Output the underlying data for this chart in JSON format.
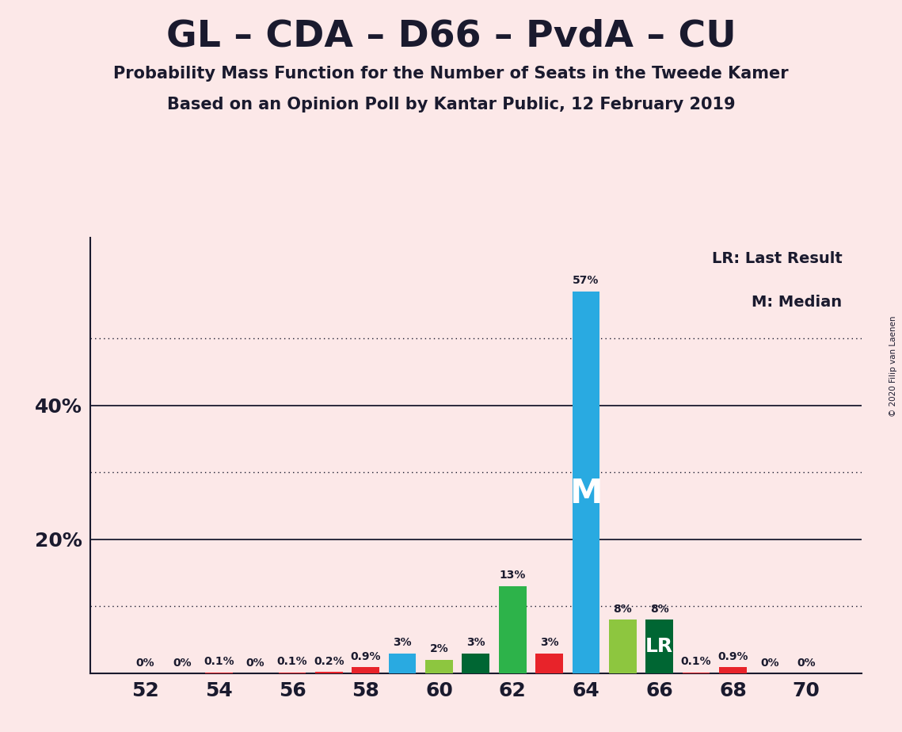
{
  "title": "GL – CDA – D66 – PvdA – CU",
  "subtitle1": "Probability Mass Function for the Number of Seats in the Tweede Kamer",
  "subtitle2": "Based on an Opinion Poll by Kantar Public, 12 February 2019",
  "copyright": "© 2020 Filip van Laenen",
  "bg": "#fce8e8",
  "seats": [
    52,
    53,
    54,
    55,
    56,
    57,
    58,
    59,
    60,
    61,
    62,
    63,
    64,
    65,
    66,
    67,
    68,
    69,
    70
  ],
  "probs": [
    0.0,
    0.0,
    0.001,
    0.0,
    0.001,
    0.002,
    0.009,
    0.03,
    0.02,
    0.03,
    0.13,
    0.03,
    0.57,
    0.08,
    0.08,
    0.001,
    0.009,
    0.0,
    0.0
  ],
  "colors": [
    "#e8232a",
    "#e8232a",
    "#e8232a",
    "#e8232a",
    "#e8232a",
    "#e8232a",
    "#e8232a",
    "#29aae1",
    "#8dc63f",
    "#006633",
    "#2db34a",
    "#e8232a",
    "#29aae1",
    "#8dc63f",
    "#006633",
    "#e8232a",
    "#e8232a",
    "#e8232a",
    "#e8232a"
  ],
  "bar_labels": [
    "0%",
    "0%",
    "0.1%",
    "0%",
    "0.1%",
    "0.2%",
    "0.9%",
    "3%",
    "2%",
    "3%",
    "13%",
    "3%",
    "57%",
    "8%",
    "8%",
    "0.1%",
    "0.9%",
    "0%",
    "0%"
  ],
  "median_idx": 12,
  "lr_idx": 14,
  "bar_width": 0.75,
  "xlim": [
    50.5,
    71.5
  ],
  "ylim": [
    0,
    0.65
  ],
  "xticks": [
    52,
    54,
    56,
    58,
    60,
    62,
    64,
    66,
    68,
    70
  ],
  "solid_lines": [
    0.2,
    0.4
  ],
  "dotted_lines": [
    0.1,
    0.3,
    0.5
  ],
  "ytick_positions": [
    0.2,
    0.4
  ],
  "ytick_labels": [
    "20%",
    "40%"
  ],
  "legend_lr": "LR: Last Result",
  "legend_m": "M: Median",
  "title_fontsize": 34,
  "subtitle_fontsize": 15,
  "tick_fontsize": 18,
  "label_fontsize": 10,
  "legend_fontsize": 14
}
